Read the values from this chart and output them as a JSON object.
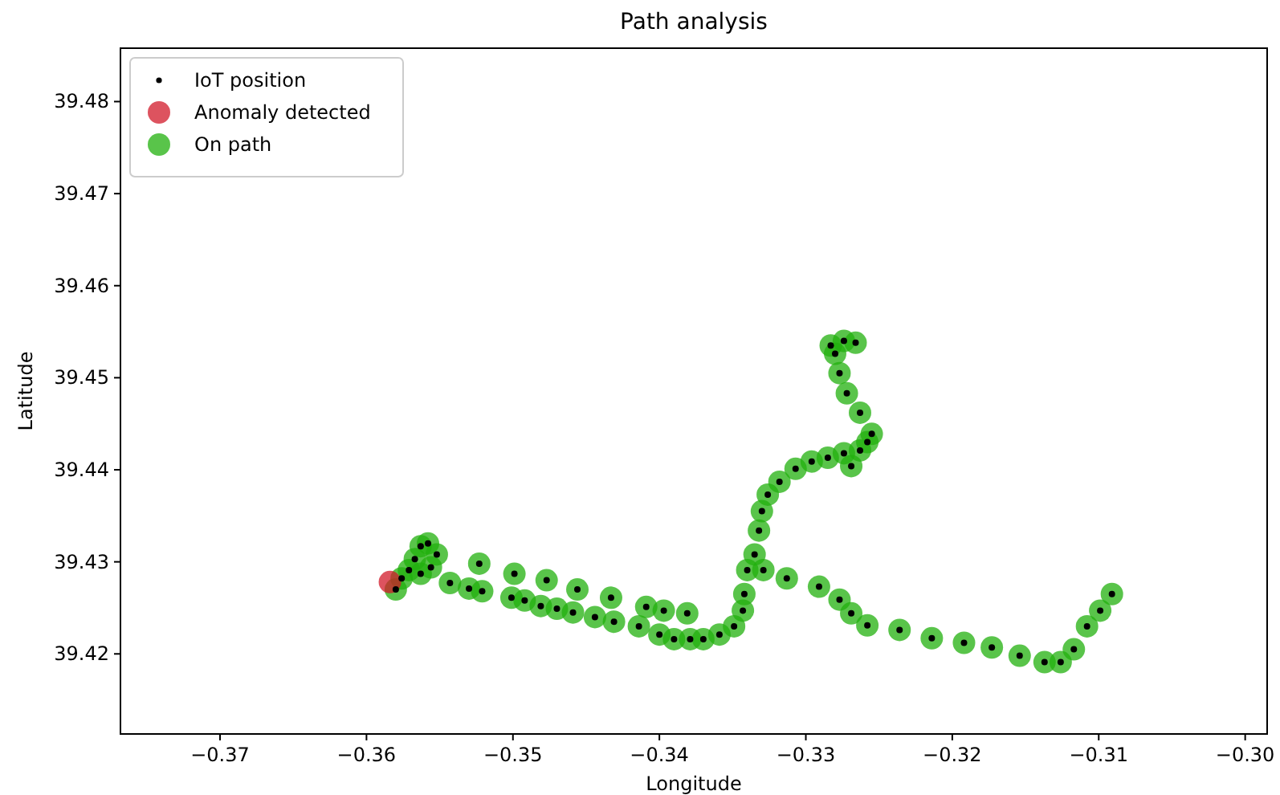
{
  "chart_data": {
    "type": "scatter",
    "title": "Path analysis",
    "xlabel": "Longitude",
    "ylabel": "Latitude",
    "xlim": [
      -0.3768,
      -0.2985
    ],
    "ylim": [
      39.4113,
      39.4858
    ],
    "xticks": [
      {
        "value": -0.37,
        "label": "−0.37"
      },
      {
        "value": -0.36,
        "label": "−0.36"
      },
      {
        "value": -0.35,
        "label": "−0.35"
      },
      {
        "value": -0.34,
        "label": "−0.34"
      },
      {
        "value": -0.33,
        "label": "−0.33"
      },
      {
        "value": -0.32,
        "label": "−0.32"
      },
      {
        "value": -0.31,
        "label": "−0.31"
      },
      {
        "value": -0.3,
        "label": "−0.30"
      }
    ],
    "yticks": [
      39.42,
      39.43,
      39.44,
      39.45,
      39.46,
      39.47,
      39.48
    ],
    "grid": false,
    "legend": "top left",
    "marker": "circle",
    "series": [
      {
        "name": "IoT position",
        "color": "#000000",
        "x": [
          -0.358,
          -0.3576,
          -0.3571,
          -0.3567,
          -0.3563,
          -0.3558,
          -0.3552,
          -0.3556,
          -0.3563,
          -0.3523,
          -0.3499,
          -0.3477,
          -0.3456,
          -0.3433,
          -0.3409,
          -0.3397,
          -0.3381,
          -0.3543,
          -0.353,
          -0.3521,
          -0.3501,
          -0.3492,
          -0.3481,
          -0.347,
          -0.3459,
          -0.3444,
          -0.3431,
          -0.3414,
          -0.34,
          -0.339,
          -0.3379,
          -0.337,
          -0.3359,
          -0.3349,
          -0.3343,
          -0.3342,
          -0.334,
          -0.3335,
          -0.3332,
          -0.333,
          -0.3326,
          -0.3318,
          -0.3307,
          -0.3296,
          -0.3285,
          -0.3274,
          -0.3263,
          -0.3258,
          -0.3255,
          -0.3263,
          -0.3272,
          -0.3277,
          -0.328,
          -0.3283,
          -0.3274,
          -0.3266,
          -0.3269,
          -0.3329,
          -0.3313,
          -0.3291,
          -0.3277,
          -0.3269,
          -0.3258,
          -0.3236,
          -0.3214,
          -0.3192,
          -0.3173,
          -0.3154,
          -0.3137,
          -0.3126,
          -0.3117,
          -0.3108,
          -0.3099,
          -0.3091
        ],
        "values": [
          39.427,
          39.4282,
          39.4291,
          39.4303,
          39.4317,
          39.432,
          39.4308,
          39.4294,
          39.4287,
          39.4298,
          39.4287,
          39.428,
          39.427,
          39.4261,
          39.4251,
          39.4247,
          39.4244,
          39.4277,
          39.4271,
          39.4268,
          39.4261,
          39.4258,
          39.4252,
          39.4249,
          39.4245,
          39.424,
          39.4235,
          39.423,
          39.4221,
          39.4216,
          39.4216,
          39.4216,
          39.4221,
          39.423,
          39.4247,
          39.4265,
          39.4291,
          39.4308,
          39.4334,
          39.4355,
          39.4373,
          39.4387,
          39.4401,
          39.4409,
          39.4413,
          39.4418,
          39.4421,
          39.443,
          39.4439,
          39.4462,
          39.4483,
          39.4505,
          39.4526,
          39.4535,
          39.454,
          39.4538,
          39.4404,
          39.4291,
          39.4282,
          39.4273,
          39.4259,
          39.4244,
          39.4231,
          39.4226,
          39.4217,
          39.4212,
          39.4207,
          39.4198,
          39.4191,
          39.4191,
          39.4205,
          39.423,
          39.4247,
          39.4265
        ]
      },
      {
        "name": "Anomaly detected",
        "color": "#d11a2a",
        "x": [
          -0.3584
        ],
        "values": [
          39.4278
        ]
      },
      {
        "name": "On path",
        "color": "#22b00e",
        "x": [
          -0.358,
          -0.3576,
          -0.3571,
          -0.3567,
          -0.3563,
          -0.3558,
          -0.3552,
          -0.3556,
          -0.3563,
          -0.3523,
          -0.3499,
          -0.3477,
          -0.3456,
          -0.3433,
          -0.3409,
          -0.3397,
          -0.3381,
          -0.3543,
          -0.353,
          -0.3521,
          -0.3501,
          -0.3492,
          -0.3481,
          -0.347,
          -0.3459,
          -0.3444,
          -0.3431,
          -0.3414,
          -0.34,
          -0.339,
          -0.3379,
          -0.337,
          -0.3359,
          -0.3349,
          -0.3343,
          -0.3342,
          -0.334,
          -0.3335,
          -0.3332,
          -0.333,
          -0.3326,
          -0.3318,
          -0.3307,
          -0.3296,
          -0.3285,
          -0.3274,
          -0.3263,
          -0.3258,
          -0.3255,
          -0.3263,
          -0.3272,
          -0.3277,
          -0.328,
          -0.3283,
          -0.3274,
          -0.3266,
          -0.3269,
          -0.3329,
          -0.3313,
          -0.3291,
          -0.3277,
          -0.3269,
          -0.3258,
          -0.3236,
          -0.3214,
          -0.3192,
          -0.3173,
          -0.3154,
          -0.3137,
          -0.3126,
          -0.3117,
          -0.3108,
          -0.3099,
          -0.3091
        ],
        "values": [
          39.427,
          39.4282,
          39.4291,
          39.4303,
          39.4317,
          39.432,
          39.4308,
          39.4294,
          39.4287,
          39.4298,
          39.4287,
          39.428,
          39.427,
          39.4261,
          39.4251,
          39.4247,
          39.4244,
          39.4277,
          39.4271,
          39.4268,
          39.4261,
          39.4258,
          39.4252,
          39.4249,
          39.4245,
          39.424,
          39.4235,
          39.423,
          39.4221,
          39.4216,
          39.4216,
          39.4216,
          39.4221,
          39.423,
          39.4247,
          39.4265,
          39.4291,
          39.4308,
          39.4334,
          39.4355,
          39.4373,
          39.4387,
          39.4401,
          39.4409,
          39.4413,
          39.4418,
          39.4421,
          39.443,
          39.4439,
          39.4462,
          39.4483,
          39.4505,
          39.4526,
          39.4535,
          39.454,
          39.4538,
          39.4404,
          39.4291,
          39.4282,
          39.4273,
          39.4259,
          39.4244,
          39.4231,
          39.4226,
          39.4217,
          39.4212,
          39.4207,
          39.4198,
          39.4191,
          39.4191,
          39.4205,
          39.423,
          39.4247,
          39.4265
        ]
      }
    ]
  }
}
